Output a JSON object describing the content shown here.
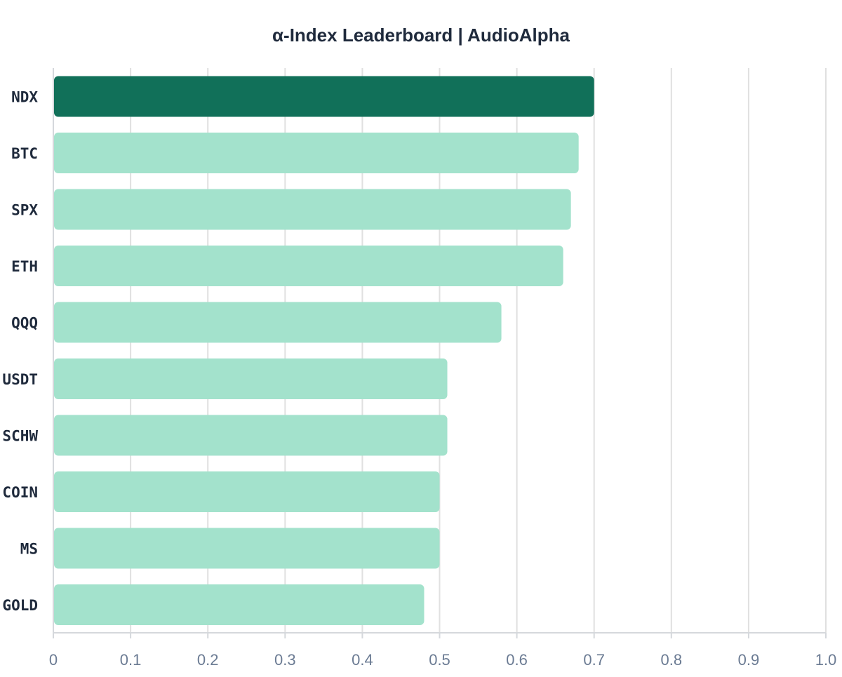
{
  "chart_data": {
    "type": "bar",
    "orientation": "horizontal",
    "title": "α-Index Leaderboard | AudioAlpha",
    "xlabel": "",
    "ylabel": "",
    "categories": [
      "NDX",
      "BTC",
      "SPX",
      "ETH",
      "QQQ",
      "USDT",
      "SCHW",
      "COIN",
      "MS",
      "GOLD"
    ],
    "values": [
      0.7,
      0.68,
      0.67,
      0.66,
      0.58,
      0.51,
      0.51,
      0.5,
      0.5,
      0.48
    ],
    "xlim": [
      0,
      1.0
    ],
    "xticks": [
      "0",
      "0.1",
      "0.2",
      "0.3",
      "0.4",
      "0.5",
      "0.6",
      "0.7",
      "0.8",
      "0.9",
      "1.0"
    ],
    "xtick_values": [
      0,
      0.1,
      0.2,
      0.3,
      0.4,
      0.5,
      0.6,
      0.7,
      0.8,
      0.9,
      1.0
    ],
    "grid": true,
    "highlight_category": "NDX",
    "colors": {
      "highlight": "#117059",
      "bar": "#a3e2cc",
      "grid": "#e0e0e0",
      "axis": "#d5d8dc",
      "title": "#1f2a3c",
      "category_label": "#1f2a3c",
      "tick_label": "#6b7b93"
    }
  }
}
